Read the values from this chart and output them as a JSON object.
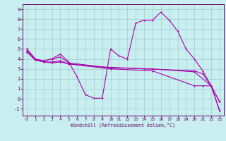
{
  "xlabel": "Windchill (Refroidissement éolien,°C)",
  "bg_color": "#c8eef0",
  "grid_color": "#a0cccc",
  "line_color": "#aa00aa",
  "spine_color": "#660066",
  "tick_color": "#660066",
  "label_color": "#660066",
  "xlim": [
    -0.5,
    23.5
  ],
  "ylim": [
    -1.7,
    9.5
  ],
  "xticks": [
    0,
    1,
    2,
    3,
    4,
    5,
    6,
    7,
    8,
    9,
    10,
    11,
    12,
    13,
    14,
    15,
    16,
    17,
    18,
    19,
    20,
    21,
    22,
    23
  ],
  "yticks": [
    -1,
    0,
    1,
    2,
    3,
    4,
    5,
    6,
    7,
    8,
    9
  ],
  "series1": [
    [
      0,
      5.0
    ],
    [
      1,
      4.0
    ],
    [
      2,
      3.8
    ],
    [
      3,
      4.0
    ],
    [
      4,
      4.5
    ],
    [
      5,
      3.7
    ],
    [
      6,
      2.2
    ],
    [
      7,
      0.4
    ],
    [
      8,
      0.05
    ],
    [
      9,
      0.05
    ],
    [
      10,
      5.0
    ],
    [
      11,
      4.3
    ],
    [
      12,
      4.0
    ],
    [
      13,
      7.6
    ],
    [
      14,
      7.9
    ],
    [
      15,
      7.9
    ],
    [
      16,
      8.7
    ],
    [
      17,
      7.9
    ],
    [
      18,
      6.8
    ],
    [
      19,
      5.0
    ],
    [
      20,
      4.0
    ],
    [
      21,
      2.8
    ],
    [
      22,
      1.3
    ],
    [
      23,
      -1.2
    ]
  ],
  "series2": [
    [
      0,
      5.0
    ],
    [
      1,
      4.0
    ],
    [
      2,
      3.8
    ],
    [
      3,
      4.0
    ],
    [
      4,
      4.2
    ],
    [
      5,
      3.6
    ],
    [
      9,
      3.2
    ],
    [
      14,
      3.0
    ],
    [
      20,
      2.8
    ],
    [
      21,
      2.5
    ],
    [
      22,
      1.3
    ],
    [
      23,
      -0.3
    ]
  ],
  "series3": [
    [
      0,
      4.7
    ],
    [
      1,
      3.9
    ],
    [
      2,
      3.7
    ],
    [
      3,
      3.7
    ],
    [
      4,
      3.8
    ],
    [
      5,
      3.5
    ],
    [
      10,
      3.1
    ],
    [
      15,
      3.0
    ],
    [
      20,
      2.7
    ],
    [
      22,
      1.3
    ],
    [
      23,
      -0.3
    ]
  ],
  "series4": [
    [
      0,
      4.8
    ],
    [
      1,
      3.9
    ],
    [
      2,
      3.7
    ],
    [
      3,
      3.6
    ],
    [
      4,
      3.7
    ],
    [
      5,
      3.5
    ],
    [
      10,
      3.0
    ],
    [
      15,
      2.8
    ],
    [
      20,
      1.3
    ],
    [
      21,
      1.3
    ],
    [
      22,
      1.3
    ],
    [
      23,
      -1.2
    ]
  ]
}
